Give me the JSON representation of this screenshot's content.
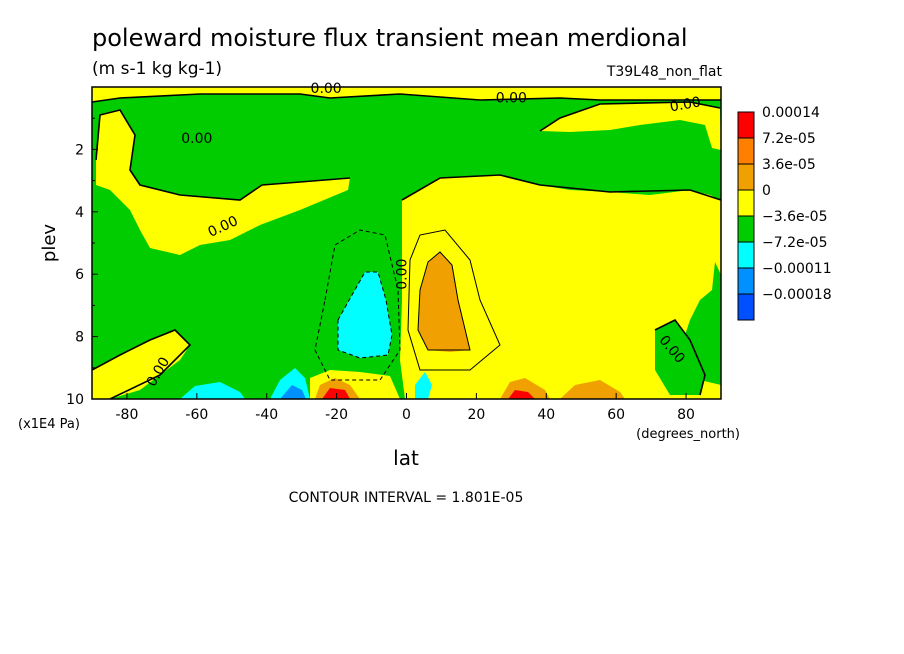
{
  "chart_data": {
    "type": "heatmap",
    "title": "poleward moisture flux transient mean merdional",
    "units": "(m s-1 kg kg-1)",
    "model_label": "T39L48_non_flat",
    "xlabel": "lat",
    "x_units": "(degrees_north)",
    "ylabel": "plev",
    "y_units": "(x1E4 Pa)",
    "xlim": [
      -90,
      90
    ],
    "ylim": [
      0,
      10
    ],
    "y_inverted": true,
    "x_ticks": [
      "-80",
      "-60",
      "-40",
      "-20",
      "0",
      "20",
      "40",
      "60",
      "80"
    ],
    "y_ticks": [
      "2",
      "4",
      "6",
      "8",
      "10"
    ],
    "footer": "CONTOUR INTERVAL = 1.801E-05",
    "legend": [
      {
        "label": "0.00014",
        "color": "#ff0000"
      },
      {
        "label": "7.2e-05",
        "color": "#ff8000"
      },
      {
        "label": "3.6e-05",
        "color": "#f0a000"
      },
      {
        "label": "0",
        "color": "#ffff00"
      },
      {
        "label": "−3.6e-05",
        "color": "#00cc00"
      },
      {
        "label": "−7.2e-05",
        "color": "#00ffff"
      },
      {
        "label": "−0.00011",
        "color": "#0090ff"
      },
      {
        "label": "−0.00018",
        "color": "#0050ff"
      }
    ],
    "contour_labels": [
      "0.00",
      "0.00",
      "0.00",
      "0.00",
      "0.00",
      "0.00",
      "0.00",
      "0.00"
    ]
  }
}
